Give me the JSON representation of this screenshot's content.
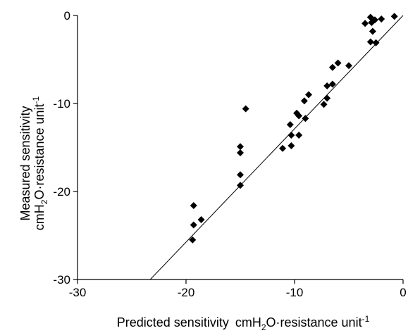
{
  "chart_data": {
    "type": "scatter",
    "title": "",
    "xlabel": {
      "main": "Predicted sensitivity",
      "unit_prefix": "cmH",
      "unit_sub": "2",
      "unit_mid": "O·resistance unit",
      "unit_sup": "-1"
    },
    "ylabel": {
      "line1": "Measured sensitivity",
      "unit_prefix": "cmH",
      "unit_sub": "2",
      "unit_mid": "O·resistance unit",
      "unit_sup": "-1"
    },
    "xlim": [
      -30,
      0
    ],
    "ylim": [
      -30,
      0
    ],
    "xticks": [
      -30,
      -20,
      -10,
      0
    ],
    "yticks": [
      -30,
      -20,
      -10,
      0
    ],
    "xtick_labels": [
      "-30",
      "-20",
      "-10",
      "0"
    ],
    "ytick_labels": [
      "-30",
      "-20",
      "-10",
      "0"
    ],
    "grid": false,
    "marker": "diamond",
    "marker_color": "#000000",
    "points": [
      {
        "x": -0.8,
        "y": -0.1
      },
      {
        "x": -2.0,
        "y": -0.4
      },
      {
        "x": -2.6,
        "y": -0.5
      },
      {
        "x": -2.9,
        "y": -0.8
      },
      {
        "x": -3.0,
        "y": -0.2
      },
      {
        "x": -3.5,
        "y": -0.9
      },
      {
        "x": -2.8,
        "y": -1.8
      },
      {
        "x": -2.5,
        "y": -3.1
      },
      {
        "x": -3.0,
        "y": -3.0
      },
      {
        "x": -5.0,
        "y": -5.7
      },
      {
        "x": -6.0,
        "y": -5.4
      },
      {
        "x": -6.5,
        "y": -5.9
      },
      {
        "x": -6.5,
        "y": -7.8
      },
      {
        "x": -7.0,
        "y": -8.0
      },
      {
        "x": -7.0,
        "y": -9.4
      },
      {
        "x": -7.3,
        "y": -10.1
      },
      {
        "x": -8.7,
        "y": -9.0
      },
      {
        "x": -9.1,
        "y": -9.7
      },
      {
        "x": -9.0,
        "y": -11.7
      },
      {
        "x": -9.6,
        "y": -11.4
      },
      {
        "x": -9.8,
        "y": -11.1
      },
      {
        "x": -10.4,
        "y": -12.4
      },
      {
        "x": -9.6,
        "y": -13.6
      },
      {
        "x": -10.3,
        "y": -13.6
      },
      {
        "x": -10.3,
        "y": -14.8
      },
      {
        "x": -11.1,
        "y": -15.1
      },
      {
        "x": -14.5,
        "y": -10.6
      },
      {
        "x": -15.0,
        "y": -14.9
      },
      {
        "x": -15.0,
        "y": -15.6
      },
      {
        "x": -15.0,
        "y": -18.1
      },
      {
        "x": -15.0,
        "y": -19.3
      },
      {
        "x": -18.6,
        "y": -23.2
      },
      {
        "x": -19.3,
        "y": -21.6
      },
      {
        "x": -19.3,
        "y": -23.8
      },
      {
        "x": -19.4,
        "y": -25.5
      }
    ],
    "fit_line": {
      "x": [
        -23.3,
        0
      ],
      "y": [
        -30,
        0
      ]
    }
  }
}
